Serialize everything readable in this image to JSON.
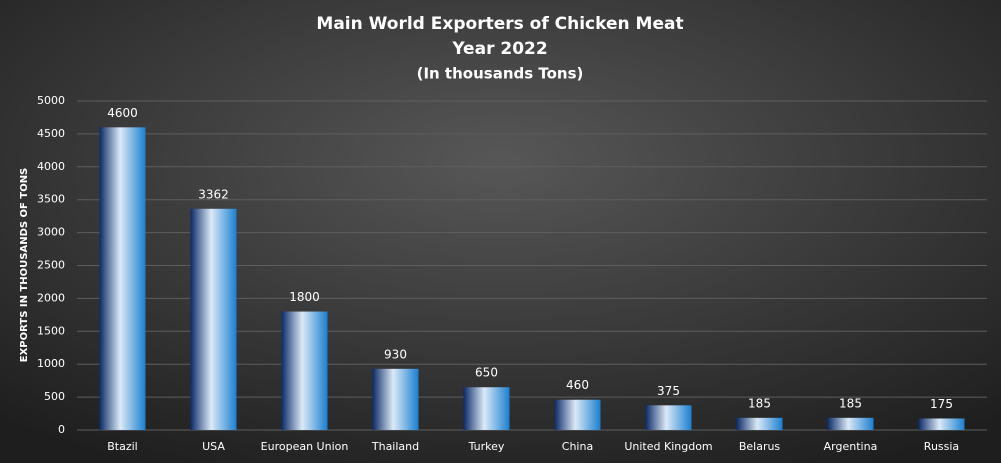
{
  "chart_data": {
    "type": "bar",
    "title": "Main World Exporters of Chicken Meat",
    "subtitle": [
      "Year 2022",
      "(In thousands Tons)"
    ],
    "y_label": "EXPORTS IN THOUSANDS OF TONS",
    "categories": [
      "Btazil",
      "USA",
      "European Union",
      "Thailand",
      "Turkey",
      "China",
      "United Kingdom",
      "Belarus",
      "Argentina",
      "Russia"
    ],
    "values": [
      4600,
      3362,
      1800,
      930,
      650,
      460,
      375,
      185,
      185,
      175
    ],
    "color": "#1a7fd0",
    "ylim": [
      0,
      5000
    ],
    "yticks": [
      0,
      500,
      1000,
      1500,
      2000,
      2500,
      3000,
      3500,
      4000,
      4500,
      5000
    ],
    "grid": true
  }
}
